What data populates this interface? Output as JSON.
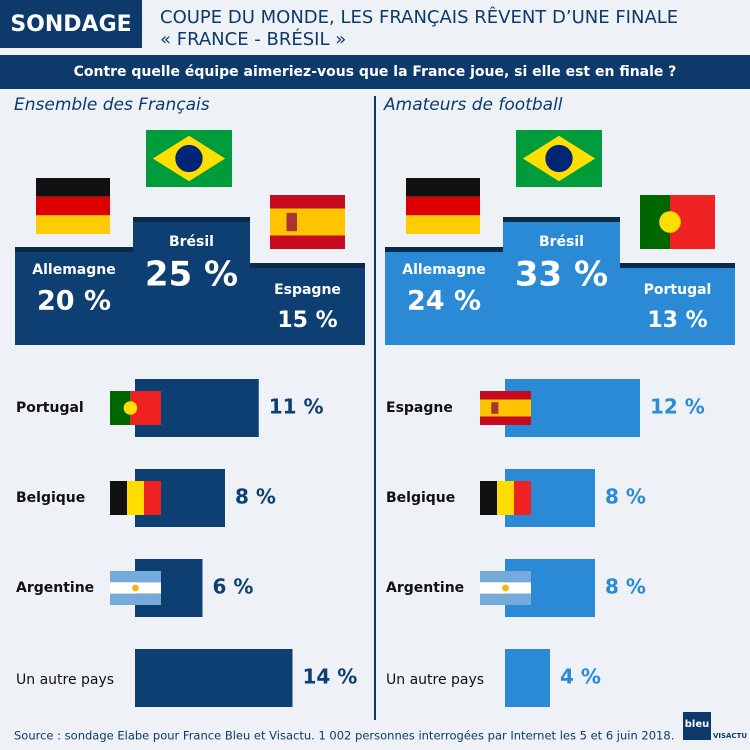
{
  "header": {
    "tag": "SONDAGE",
    "title": "COUPE DU MONDE, LES FRANÇAIS RÊVENT D’UNE FINALE",
    "subtitle": "« FRANCE - BRÉSIL »",
    "question": "Contre quelle équipe aimeriez-vous que la France joue, si elle est en finale ?"
  },
  "source": "Source : sondage Elabe pour France Bleu et Visactu. 1 002 personnes interrogées par Internet les 5 et 6 juin 2018.",
  "logos": [
    "bleu",
    "VISACTU"
  ],
  "chart_data": [
    {
      "type": "podium",
      "title": "Ensemble des Français",
      "categories": [
        "Allemagne",
        "Brésil",
        "Espagne"
      ],
      "values": [
        20,
        25,
        15
      ],
      "value_labels": [
        "20 %",
        "25 %",
        "15 %"
      ],
      "color": "#0d3f73"
    },
    {
      "type": "bar",
      "categories": [
        "Portugal",
        "Belgique",
        "Argentine",
        "Un autre pays"
      ],
      "values": [
        11,
        8,
        6,
        14
      ],
      "value_labels": [
        "11 %",
        "8 %",
        "6 %",
        "14 %"
      ],
      "color": "#0d3f73",
      "xlim": [
        0,
        20
      ]
    },
    {
      "type": "podium",
      "title": "Amateurs de football",
      "categories": [
        "Allemagne",
        "Brésil",
        "Portugal"
      ],
      "values": [
        24,
        33,
        13
      ],
      "value_labels": [
        "24 %",
        "33 %",
        "13 %"
      ],
      "color": "#2a8ad6"
    },
    {
      "type": "bar",
      "categories": [
        "Espagne",
        "Belgique",
        "Argentine",
        "Un autre pays"
      ],
      "values": [
        12,
        8,
        8,
        4
      ],
      "value_labels": [
        "12 %",
        "8 %",
        "8 %",
        "4 %"
      ],
      "color": "#2a8ad6",
      "xlim": [
        0,
        20
      ]
    }
  ]
}
